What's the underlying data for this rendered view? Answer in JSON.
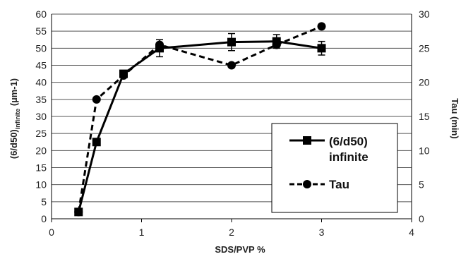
{
  "chart_data": {
    "type": "line",
    "xlabel": "SDS/PVP %",
    "ylabel_left": "(6/d50)",
    "ylabel_left_subscript": "infinite",
    "ylabel_left_unit": " (µm-1)",
    "ylabel_right": "Tau (min)",
    "xlim": [
      0,
      4
    ],
    "ylim_left": [
      0,
      60
    ],
    "ylim_right": [
      0,
      30
    ],
    "x_ticks": [
      "0",
      "1",
      "2",
      "3",
      "4"
    ],
    "y_left_ticks": [
      "0",
      "5",
      "10",
      "15",
      "20",
      "25",
      "30",
      "35",
      "40",
      "45",
      "50",
      "55",
      "60"
    ],
    "y_right_ticks": [
      "0",
      "5",
      "10",
      "15",
      "20",
      "25",
      "30"
    ],
    "grid": "horizontal",
    "legend_position": "center-right",
    "series": [
      {
        "name": "(6/d50) infinite",
        "legend_lines": [
          "(6/d50)",
          "infinite"
        ],
        "axis": "left",
        "style": "solid",
        "marker": "square",
        "x": [
          0.3,
          0.5,
          0.8,
          1.2,
          2.0,
          2.5,
          3.0
        ],
        "y": [
          2,
          22.5,
          42.5,
          50,
          51.8,
          52,
          50
        ],
        "error": [
          0,
          0,
          0,
          2.5,
          2.5,
          2.0,
          2.0
        ]
      },
      {
        "name": "Tau",
        "legend_lines": [
          "Tau"
        ],
        "axis": "right",
        "style": "dashed",
        "marker": "circle",
        "x": [
          0.3,
          0.5,
          0.8,
          1.2,
          2.0,
          2.5,
          3.0
        ],
        "y": [
          1,
          17.5,
          21,
          25.5,
          22.5,
          25.5,
          28.2
        ]
      }
    ]
  }
}
